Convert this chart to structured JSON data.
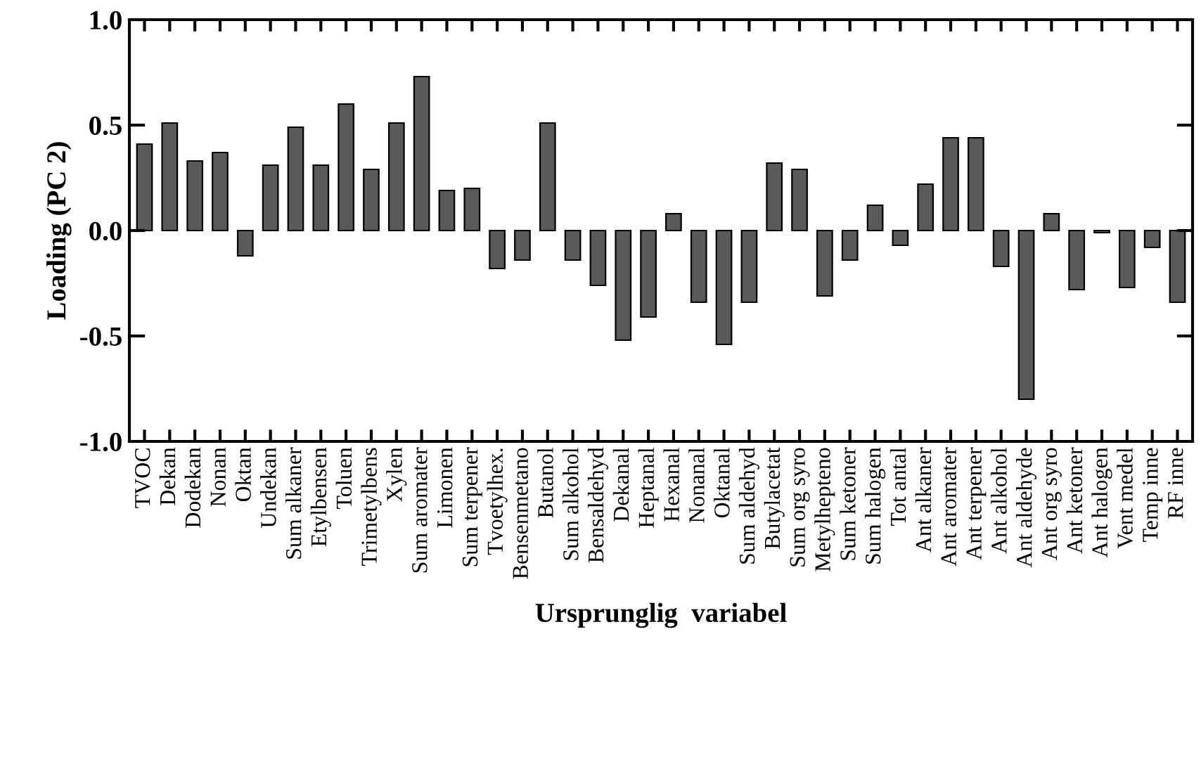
{
  "chart_data": {
    "type": "bar",
    "xlabel": "Ursprunglig  variabel",
    "ylabel": "Loading (PC 2)",
    "categories": [
      "TVOC",
      "Dekan",
      "Dodekan",
      "Nonan",
      "Oktan",
      "Undekan",
      "Sum alkaner",
      "Etylbensen",
      "Toluen",
      "Trimetylbens",
      "Xylen",
      "Sum aromater",
      "Limonen",
      "Sum terpener",
      "Tvoetylhex.",
      "Bensenmetano",
      "Butanol",
      "Sum alkohol",
      "Bensaldehyd",
      "Dekanal",
      "Heptanal",
      "Hexanal",
      "Nonanal",
      "Oktanal",
      "Sum aldehyd",
      "Butylacetat",
      "Sum org syro",
      "Metylhepteno",
      "Sum ketoner",
      "Sum halogen",
      "Tot antal",
      "Ant alkaner",
      "Ant aromater",
      "Ant terpener",
      "Ant alkohol",
      "Ant aldehyde",
      "Ant org syro",
      "Ant ketoner",
      "Ant halogen",
      "Vent medel",
      "Temp inne",
      "RF inne"
    ],
    "values": [
      0.41,
      0.51,
      0.33,
      0.37,
      -0.12,
      0.31,
      0.49,
      0.31,
      0.6,
      0.29,
      0.51,
      0.73,
      0.19,
      0.2,
      -0.18,
      -0.14,
      0.51,
      -0.14,
      -0.26,
      -0.52,
      -0.41,
      0.08,
      -0.34,
      -0.54,
      -0.34,
      0.32,
      0.29,
      -0.31,
      -0.14,
      0.12,
      -0.07,
      0.22,
      0.44,
      0.44,
      -0.17,
      -0.8,
      0.08,
      -0.28,
      -0.01,
      -0.27,
      -0.08,
      -0.34
    ],
    "color": "#5a5a5a",
    "ylim": [
      -1.0,
      1.0
    ],
    "yticks": [
      {
        "value": -1.0,
        "label": "-1.0"
      },
      {
        "value": -0.5,
        "label": "-0.5"
      },
      {
        "value": 0.0,
        "label": "0.0"
      },
      {
        "value": 0.5,
        "label": "0.5"
      },
      {
        "value": 1.0,
        "label": "1.0"
      }
    ],
    "grid": false,
    "legend": false
  }
}
